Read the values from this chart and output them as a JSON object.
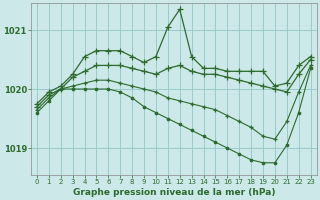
{
  "background_color": "#cce8e8",
  "grid_color": "#99cccc",
  "line_color": "#2d6a2d",
  "title": "Graphe pression niveau de la mer (hPa)",
  "xlim": [
    -0.5,
    23.5
  ],
  "ylim": [
    1018.55,
    1021.45
  ],
  "yticks": [
    1019,
    1020,
    1021
  ],
  "xticks": [
    0,
    1,
    2,
    3,
    4,
    5,
    6,
    7,
    8,
    9,
    10,
    11,
    12,
    13,
    14,
    15,
    16,
    17,
    18,
    19,
    20,
    21,
    22,
    23
  ],
  "series": [
    {
      "x": [
        0,
        1,
        2,
        3,
        4,
        5,
        6,
        7,
        8,
        9,
        10,
        11,
        12,
        13,
        14,
        15,
        16,
        17,
        18,
        19,
        20,
        21,
        22,
        23
      ],
      "y": [
        1019.75,
        1019.95,
        1020.05,
        1020.25,
        1020.55,
        1020.65,
        1020.65,
        1020.65,
        1020.55,
        1020.45,
        1020.55,
        1021.05,
        1021.35,
        1020.55,
        1020.35,
        1020.35,
        1020.3,
        1020.3,
        1020.3,
        1020.3,
        1020.05,
        1020.1,
        1020.4,
        1020.55
      ],
      "marker": "+",
      "markersize": 4,
      "lw": 0.9
    },
    {
      "x": [
        0,
        1,
        2,
        3,
        4,
        5,
        6,
        7,
        8,
        9,
        10,
        11,
        12,
        13,
        14,
        15,
        16,
        17,
        18,
        19,
        20,
        21,
        22,
        23
      ],
      "y": [
        1019.7,
        1019.9,
        1020.0,
        1020.2,
        1020.3,
        1020.4,
        1020.4,
        1020.4,
        1020.35,
        1020.3,
        1020.25,
        1020.35,
        1020.4,
        1020.3,
        1020.25,
        1020.25,
        1020.2,
        1020.15,
        1020.1,
        1020.05,
        1020.0,
        1019.95,
        1020.25,
        1020.5
      ],
      "marker": "+",
      "markersize": 4,
      "lw": 0.9
    },
    {
      "x": [
        0,
        1,
        2,
        3,
        4,
        5,
        6,
        7,
        8,
        9,
        10,
        11,
        12,
        13,
        14,
        15,
        16,
        17,
        18,
        19,
        20,
        21,
        22,
        23
      ],
      "y": [
        1019.65,
        1019.85,
        1020.0,
        1020.05,
        1020.1,
        1020.15,
        1020.15,
        1020.1,
        1020.05,
        1020.0,
        1019.95,
        1019.85,
        1019.8,
        1019.75,
        1019.7,
        1019.65,
        1019.55,
        1019.45,
        1019.35,
        1019.2,
        1019.15,
        1019.45,
        1019.95,
        1020.4
      ],
      "marker": "+",
      "markersize": 3,
      "lw": 0.8
    },
    {
      "x": [
        0,
        1,
        2,
        3,
        4,
        5,
        6,
        7,
        8,
        9,
        10,
        11,
        12,
        13,
        14,
        15,
        16,
        17,
        18,
        19,
        20,
        21,
        22,
        23
      ],
      "y": [
        1019.6,
        1019.8,
        1020.0,
        1020.0,
        1020.0,
        1020.0,
        1020.0,
        1019.95,
        1019.85,
        1019.7,
        1019.6,
        1019.5,
        1019.4,
        1019.3,
        1019.2,
        1019.1,
        1019.0,
        1018.9,
        1018.8,
        1018.75,
        1018.75,
        1019.05,
        1019.6,
        1020.35
      ],
      "marker": ".",
      "markersize": 3.5,
      "lw": 0.8
    }
  ]
}
